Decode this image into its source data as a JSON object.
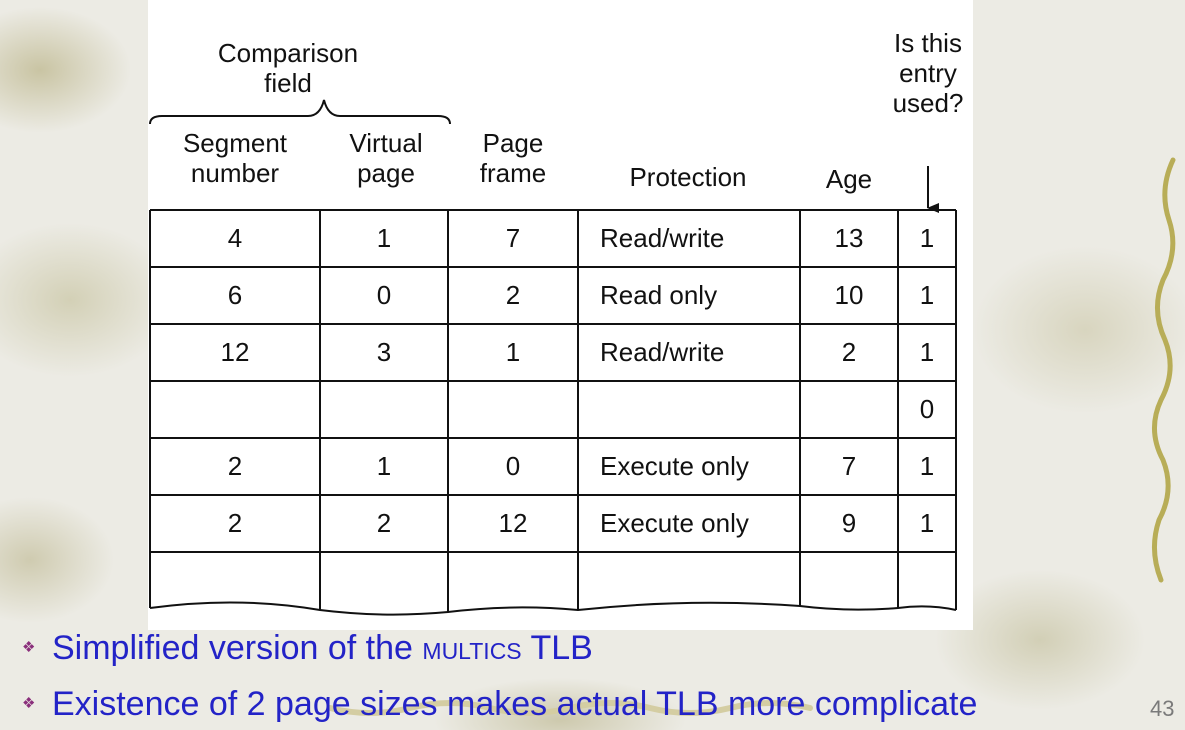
{
  "figure": {
    "comparison_label": [
      "Comparison",
      "field"
    ],
    "used_label": [
      "Is this",
      "entry",
      "used?"
    ],
    "columns": [
      {
        "label": [
          "Segment",
          "number"
        ]
      },
      {
        "label": [
          "Virtual",
          "page"
        ]
      },
      {
        "label": [
          "Page",
          "frame"
        ]
      },
      {
        "label": [
          "Protection"
        ]
      },
      {
        "label": [
          "Age"
        ]
      },
      {
        "label": []
      }
    ],
    "rows": [
      [
        "4",
        "1",
        "7",
        "Read/write",
        "13",
        "1"
      ],
      [
        "6",
        "0",
        "2",
        "Read only",
        "10",
        "1"
      ],
      [
        "12",
        "3",
        "1",
        "Read/write",
        "2",
        "1"
      ],
      [
        "",
        "",
        "",
        "",
        "",
        "0"
      ],
      [
        "2",
        "1",
        "0",
        "Execute only",
        "7",
        "1"
      ],
      [
        "2",
        "2",
        "12",
        "Execute only",
        "9",
        "1"
      ],
      [
        "",
        "",
        "",
        "",
        "",
        ""
      ]
    ]
  },
  "bullets": [
    {
      "before": "Simplified version of the ",
      "smallcaps": "MULTICS",
      "after": " TLB"
    },
    {
      "before": "Existence of 2 page sizes makes actual TLB more complicate",
      "smallcaps": "",
      "after": ""
    }
  ],
  "bullet_icon": "diamond-bullet-icon",
  "slide_number": "43",
  "colors": {
    "bullet_text": "#2323c7",
    "bullet_icon": "#8a2f7b"
  }
}
